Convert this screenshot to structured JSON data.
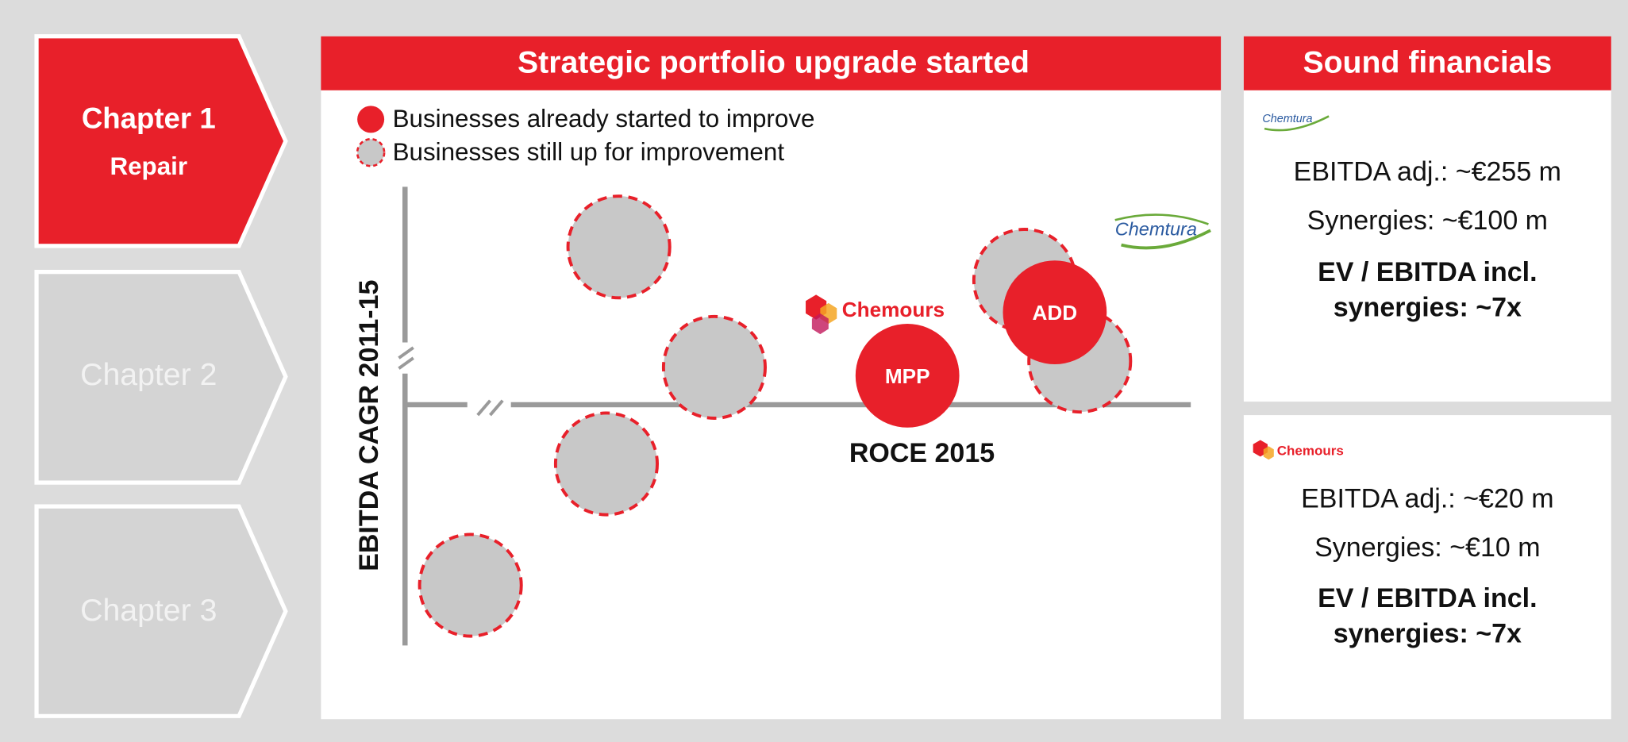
{
  "chapters": [
    {
      "title": "Chapter 1",
      "subtitle": "Repair"
    },
    {
      "title": "Chapter 2"
    },
    {
      "title": "Chapter 3"
    }
  ],
  "portfolio": {
    "title": "Strategic portfolio upgrade started",
    "legend": [
      "Businesses already started to improve",
      "Businesses still up for improvement"
    ],
    "y_axis_label": "EBITDA CAGR 2011-15",
    "x_axis_label": "ROCE 2015",
    "logos": [
      "Chemours",
      "Chemtura"
    ],
    "bubbles": [
      "MPP",
      "ADD"
    ]
  },
  "financials": {
    "title": "Sound financials",
    "blocks": [
      {
        "logo": "Chemtura",
        "lines": [
          "EBITDA adj.: ~€255 m",
          "Synergies: ~€100 m"
        ],
        "highlight": [
          "EV / EBITDA incl.",
          "synergies: ~7x"
        ]
      },
      {
        "logo": "Chemours",
        "lines": [
          "EBITDA adj.: ~€20 m",
          "Synergies: ~€10 m"
        ],
        "highlight": [
          "EV / EBITDA incl.",
          "synergies: ~7x"
        ]
      }
    ]
  }
}
